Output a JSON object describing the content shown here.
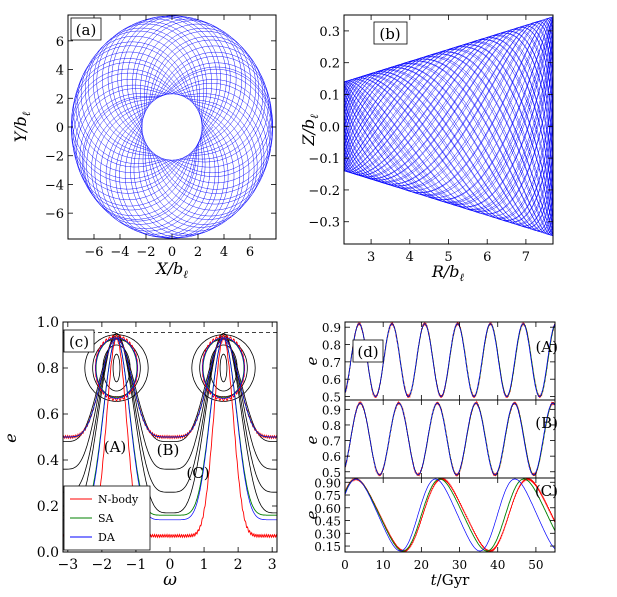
{
  "chart_data": [
    {
      "panel": "(a)",
      "type": "line",
      "title": "",
      "xlabel": "X/b",
      "ylabel": "Y/b",
      "label_subscript": "ℓ",
      "xlim": [
        -8,
        8
      ],
      "ylim": [
        -7.8,
        7.8
      ],
      "xticks": [
        "−6",
        "−4",
        "−2",
        "0",
        "2",
        "4",
        "6"
      ],
      "yticks": [
        "6",
        "4",
        "2",
        "0",
        "−2",
        "−4",
        "−6"
      ],
      "xtick_values": [
        -6,
        -4,
        -2,
        0,
        2,
        4,
        6
      ],
      "ytick_values": [
        6,
        4,
        2,
        0,
        -2,
        -4,
        -6
      ],
      "orbit": {
        "r_min": 2.3,
        "r_max": 7.75,
        "color": "#0000ff",
        "description_kind": "rosette"
      },
      "grid": false
    },
    {
      "panel": "(b)",
      "type": "line",
      "title": "",
      "xlabel": "R/b",
      "ylabel": "Z/b",
      "label_subscript": "ℓ",
      "xlim": [
        2.3,
        7.7
      ],
      "ylim": [
        -0.37,
        0.35
      ],
      "xticks": [
        "3",
        "4",
        "5",
        "6",
        "7"
      ],
      "yticks": [
        "0.3",
        "0.2",
        "0.1",
        "0.0",
        "−0.1",
        "−0.2",
        "−0.3"
      ],
      "xtick_values": [
        3,
        4,
        5,
        6,
        7
      ],
      "ytick_values": [
        0.3,
        0.2,
        0.1,
        0.0,
        -0.1,
        -0.2,
        -0.3
      ],
      "envelope": {
        "z_at_rmin": 0.14,
        "z_at_rmax": 0.345
      },
      "color": "#0000ff",
      "grid": false
    },
    {
      "panel": "(c)",
      "type": "line",
      "title": "",
      "xlabel": "ω",
      "ylabel": "e",
      "xlim": [
        -3.14159,
        3.14159
      ],
      "ylim": [
        0,
        1
      ],
      "xticks": [
        "−3",
        "−2",
        "−1",
        "0",
        "1",
        "2",
        "3"
      ],
      "yticks": [
        "1.0",
        "0.8",
        "0.6",
        "0.4",
        "0.2",
        "0.0"
      ],
      "xtick_values": [
        -3,
        -2,
        -1,
        0,
        1,
        2,
        3
      ],
      "ytick_values": [
        1.0,
        0.8,
        0.6,
        0.4,
        0.2,
        0.0
      ],
      "dashed_line_e": 0.955,
      "annotations": [
        "(A)",
        "(B)",
        "(C)"
      ],
      "series": [
        {
          "name": "N-body",
          "color": "#ff0000"
        },
        {
          "name": "SA",
          "color": "#008000"
        },
        {
          "name": "DA",
          "color": "#0000ff"
        }
      ],
      "legend": "bottom-left",
      "contour_color": "#000000",
      "libration_centers": [
        -1.5708,
        1.5708
      ],
      "fixed_point_e": 0.8
    },
    {
      "panel": "(d)",
      "type": "line",
      "title": "",
      "xlabel": "t/Gyr",
      "ylabel": "e",
      "xlim": [
        0,
        55
      ],
      "xticks": [
        "0",
        "10",
        "20",
        "30",
        "40",
        "50"
      ],
      "xtick_values": [
        0,
        10,
        20,
        30,
        40,
        50
      ],
      "subplots": [
        {
          "label": "(A)",
          "ylim": [
            0.48,
            0.93
          ],
          "yticks": [
            "0.9",
            "0.8",
            "0.7",
            "0.6",
            "0.5"
          ],
          "ytick_values": [
            0.9,
            0.8,
            0.7,
            0.6,
            0.5
          ],
          "e_min": 0.5,
          "e_max": 0.92,
          "period_gyr": 8.6,
          "phase_peak_gyr": 3.7
        },
        {
          "label": "(B)",
          "ylim": [
            0.46,
            0.96
          ],
          "yticks": [
            "0.9",
            "0.8",
            "0.7",
            "0.6",
            "0.5"
          ],
          "ytick_values": [
            0.9,
            0.8,
            0.7,
            0.6,
            0.5
          ],
          "e_min": 0.48,
          "e_max": 0.94,
          "period_gyr": 10.1,
          "phase_peak_gyr": 4.0
        },
        {
          "label": "(C)",
          "ylim": [
            0.08,
            0.95
          ],
          "yticks": [
            "0.90",
            "0.75",
            "0.60",
            "0.45",
            "0.30",
            "0.15"
          ],
          "ytick_values": [
            0.9,
            0.75,
            0.6,
            0.45,
            0.3,
            0.15
          ],
          "e_min": 0.1,
          "e_max": 0.93
        }
      ],
      "series": [
        {
          "name": "N-body",
          "color": "#ff0000"
        },
        {
          "name": "SA",
          "color": "#008000"
        },
        {
          "name": "DA",
          "color": "#0000ff"
        }
      ]
    }
  ]
}
